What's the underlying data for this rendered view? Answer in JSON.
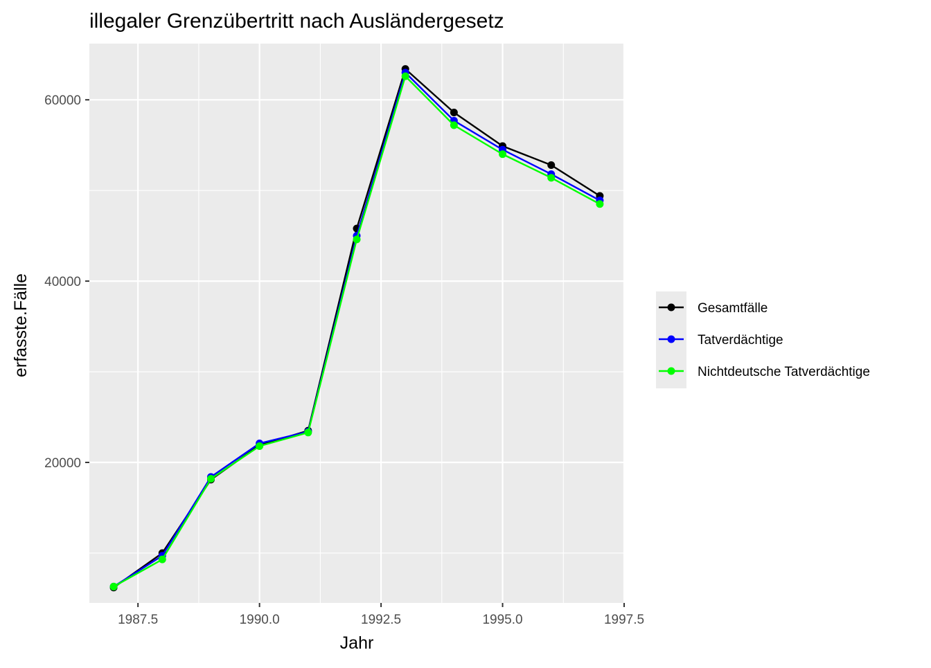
{
  "chart_data": {
    "type": "line",
    "title": "illegaler Grenzübertritt nach Ausländergesetz",
    "xlabel": "Jahr",
    "ylabel": "erfasste.Fälle",
    "x": [
      1987,
      1988,
      1989,
      1990,
      1991,
      1992,
      1993,
      1994,
      1995,
      1996,
      1997
    ],
    "xlim": [
      1986.5,
      1997.5
    ],
    "ylim": [
      4500,
      66200
    ],
    "x_ticks": [
      1987.5,
      1990.0,
      1992.5,
      1995.0,
      1997.5
    ],
    "x_tick_labels": [
      "1987.5",
      "1990.0",
      "1992.5",
      "1995.0",
      "1997.5"
    ],
    "y_ticks": [
      20000,
      40000,
      60000
    ],
    "y_tick_labels": [
      "20000",
      "40000",
      "60000"
    ],
    "grid": true,
    "legend_position": "right",
    "series": [
      {
        "name": "Gesamtfälle",
        "color": "#000000",
        "values": [
          6200,
          10000,
          18100,
          21900,
          23500,
          45800,
          63400,
          58600,
          54900,
          52800,
          49400
        ]
      },
      {
        "name": "Tatverdächtige",
        "color": "#0000ff",
        "values": [
          6300,
          9700,
          18400,
          22100,
          23400,
          45000,
          63000,
          57700,
          54500,
          51800,
          48900
        ]
      },
      {
        "name": "Nichtdeutsche Tatverdächtige",
        "color": "#00ff00",
        "values": [
          6300,
          9300,
          18200,
          21800,
          23300,
          44600,
          62600,
          57200,
          54000,
          51400,
          48500
        ]
      }
    ]
  }
}
